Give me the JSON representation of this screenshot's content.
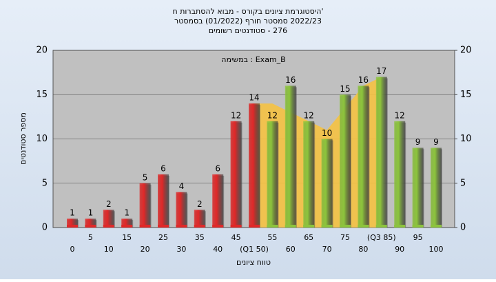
{
  "chart_data": {
    "type": "bar",
    "title": "'היסטוגרמת ציונים בקורס - מבוא להסתברות ח",
    "subtitle": "2022/23 סמסטר חורף (01/2022) בסמסטר",
    "subtitle2": "276 - סטודנטים רשומים",
    "annotation": "Exam_B : במשימה",
    "xlabel": "טווח ציונים",
    "ylabel": "מספר סטודנטים",
    "categories": [
      "0",
      "5",
      "10",
      "15",
      "20",
      "25",
      "30",
      "35",
      "40",
      "45",
      "(Q1 50)",
      "55",
      "60",
      "65",
      "70",
      "75",
      "80",
      "(Q3 85)",
      "90",
      "95",
      "100"
    ],
    "values": [
      1,
      1,
      2,
      1,
      5,
      6,
      4,
      2,
      6,
      12,
      14,
      12,
      16,
      12,
      10,
      15,
      16,
      17,
      12,
      9,
      9
    ],
    "bar_colors": [
      "#e02828",
      "#e02828",
      "#e02828",
      "#e02828",
      "#e02828",
      "#e02828",
      "#e02828",
      "#e02828",
      "#e02828",
      "#e02828",
      "#e02828",
      "#8cc43c",
      "#8cc43c",
      "#8cc43c",
      "#8cc43c",
      "#8cc43c",
      "#8cc43c",
      "#8cc43c",
      "#8cc43c",
      "#8cc43c",
      "#8cc43c"
    ],
    "area_values": [
      null,
      null,
      null,
      null,
      null,
      null,
      null,
      null,
      null,
      null,
      14,
      14,
      13,
      12,
      11,
      13.5,
      16,
      17,
      null,
      null,
      null
    ],
    "area_color": "#f5c242",
    "ylim": [
      0,
      20
    ],
    "yticks": [
      0,
      5,
      10,
      15,
      20
    ],
    "y2lim": [
      0,
      20
    ],
    "y2ticks": [
      0,
      5,
      10,
      15,
      20
    ],
    "grid": true
  }
}
